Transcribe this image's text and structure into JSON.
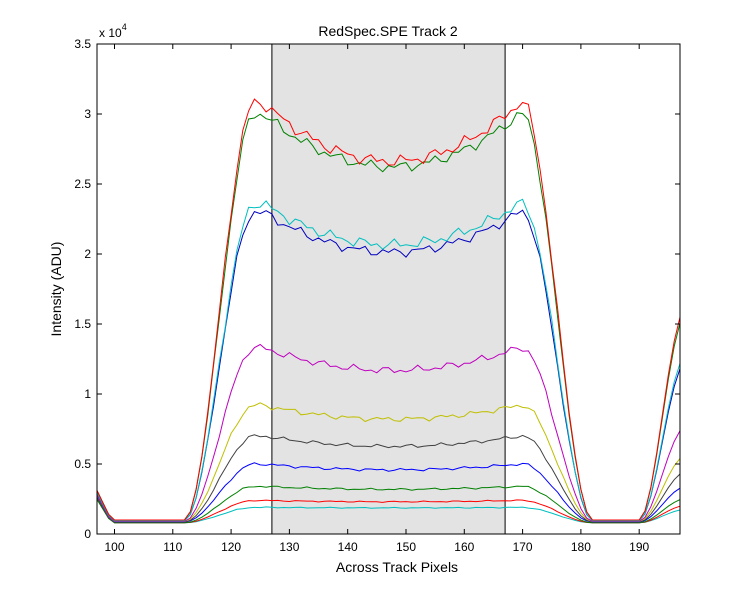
{
  "chart_data": {
    "type": "line",
    "title": "RedSpec.SPE   Track 2",
    "xlabel": "Across Track Pixels",
    "ylabel": "Intensity (ADU)",
    "y_multiplier": "x 10",
    "y_exponent": "4",
    "xlim": [
      97,
      197
    ],
    "ylim": [
      0,
      35000
    ],
    "xticks": [
      100,
      110,
      120,
      130,
      140,
      150,
      160,
      170,
      180,
      190
    ],
    "yticks": [
      0,
      5000,
      10000,
      15000,
      20000,
      25000,
      30000,
      35000
    ],
    "ytick_labels": [
      "0",
      "0.5",
      "1",
      "1.5",
      "2",
      "2.5",
      "3",
      "3.5"
    ],
    "grid": false,
    "legend": "none",
    "shaded_region": [
      127,
      167
    ],
    "shade_color": "#e3e3e3",
    "series": [
      {
        "color": "#00bfbf",
        "baseline": 800,
        "plateau": 1900,
        "dip": 0.03,
        "edge": 1400,
        "bump": 40,
        "drop": 600
      },
      {
        "color": "#ff0000",
        "baseline": 800,
        "plateau": 2400,
        "dip": 0.06,
        "edge": 1500,
        "bump": 50,
        "drop": 800
      },
      {
        "color": "#008000",
        "baseline": 800,
        "plateau": 3400,
        "dip": 0.08,
        "edge": 1600,
        "bump": 80,
        "drop": 1100
      },
      {
        "color": "#0000ff",
        "baseline": 850,
        "plateau": 5000,
        "dip": 0.1,
        "edge": 1800,
        "bump": 120,
        "drop": 1600
      },
      {
        "color": "#404040",
        "baseline": 850,
        "plateau": 7000,
        "dip": 0.12,
        "edge": 2000,
        "bump": 150,
        "drop": 2300
      },
      {
        "color": "#bfbf00",
        "baseline": 900,
        "plateau": 9200,
        "dip": 0.12,
        "edge": 2500,
        "bump": 220,
        "drop": 3000
      },
      {
        "color": "#bf00bf",
        "baseline": 900,
        "plateau": 13300,
        "dip": 0.13,
        "edge": 3200,
        "bump": 300,
        "drop": 4300
      },
      {
        "color": "#0000bf",
        "baseline": 950,
        "plateau": 23000,
        "dip": 0.13,
        "edge": 5000,
        "bump": 400,
        "drop": 7000
      },
      {
        "color": "#00bfbf",
        "baseline": 950,
        "plateau": 23600,
        "dip": 0.13,
        "edge": 5000,
        "bump": 450,
        "drop": 7300
      },
      {
        "color": "#008000",
        "baseline": 1000,
        "plateau": 30000,
        "dip": 0.13,
        "edge": 6000,
        "bump": 450,
        "drop": 9000
      },
      {
        "color": "#ff0000",
        "baseline": 1000,
        "plateau": 30800,
        "dip": 0.14,
        "edge": 6200,
        "bump": 500,
        "drop": 9300
      }
    ]
  }
}
